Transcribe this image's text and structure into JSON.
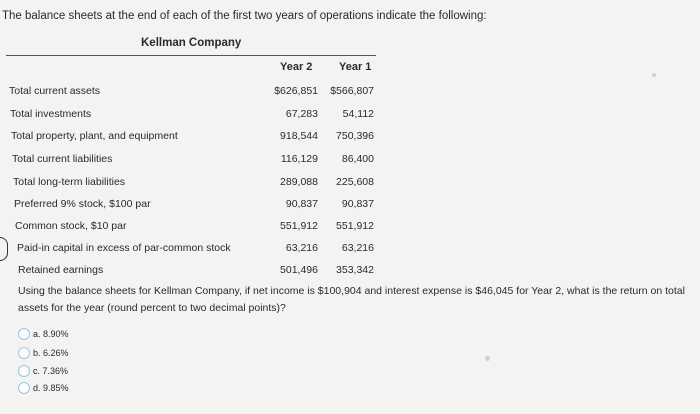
{
  "intro": "The balance sheets at the end of each of the first two years of operations indicate the following:",
  "company": "Kellman Company",
  "columns": {
    "year2": "Year 2",
    "year1": "Year 1"
  },
  "rows": [
    {
      "label": "Total current assets",
      "year2": "$626,851",
      "year1": "$566,807"
    },
    {
      "label": "Total investments",
      "year2": "67,283",
      "year1": "54,112"
    },
    {
      "label": "Total property, plant, and equipment",
      "year2": "918,544",
      "year1": "750,396"
    },
    {
      "label": "Total current liabilities",
      "year2": "116,129",
      "year1": "86,400"
    },
    {
      "label": "Total long-term liabilities",
      "year2": "289,088",
      "year1": "225,608"
    },
    {
      "label": "Preferred 9% stock, $100 par",
      "year2": "90,837",
      "year1": "90,837"
    },
    {
      "label": "Common stock, $10 par",
      "year2": "551,912",
      "year1": "551,912"
    },
    {
      "label": "Paid-in capital in excess of par-common stock",
      "year2": "63,216",
      "year1": "63,216"
    },
    {
      "label": "Retained earnings",
      "year2": "501,496",
      "year1": "353,342"
    }
  ],
  "question": "Using the balance sheets for Kellman Company, if net income is $100,904 and interest expense is $46,045 for Year 2, what is the return on total assets for the year (round percent to two decimal points)?",
  "options": [
    {
      "letter": "a.",
      "text": "8.90%"
    },
    {
      "letter": "b.",
      "text": "6.26%"
    },
    {
      "letter": "c.",
      "text": "7.36%"
    },
    {
      "letter": "d.",
      "text": "9.85%"
    }
  ]
}
